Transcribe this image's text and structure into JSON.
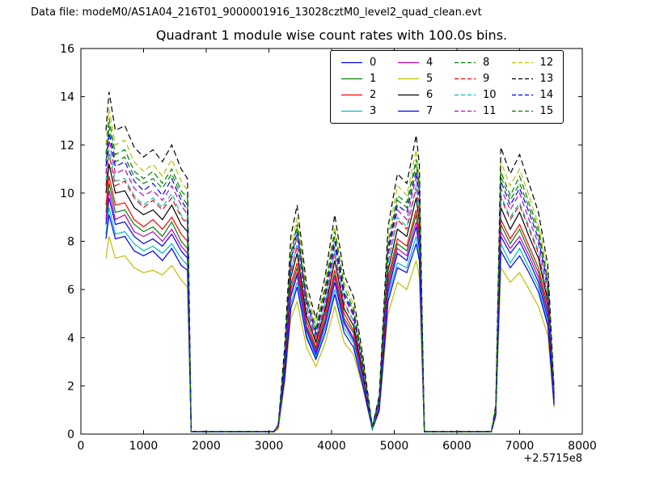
{
  "header": {
    "datafile": "Data file: modeM0/AS1A04_216T01_9000001916_13028cztM0_level2_quad_clean.evt"
  },
  "chart_data": {
    "type": "line",
    "title": "Quadrant 1 module wise count rates with 100.0s bins.",
    "xlabel": "",
    "ylabel": "",
    "x_offset_label": "+2.5715e8",
    "xlim": [
      0,
      8000
    ],
    "ylim": [
      0,
      16
    ],
    "x_ticks": [
      0,
      1000,
      2000,
      3000,
      4000,
      5000,
      6000,
      7000,
      8000
    ],
    "y_ticks": [
      0,
      2,
      4,
      6,
      8,
      10,
      12,
      14,
      16
    ],
    "grid": false,
    "legend_position": "upper center",
    "x": [
      400,
      450,
      550,
      700,
      850,
      1000,
      1150,
      1300,
      1450,
      1600,
      1700,
      1760,
      3080,
      3150,
      3250,
      3350,
      3450,
      3600,
      3750,
      3900,
      4050,
      4200,
      4350,
      4500,
      4650,
      4760,
      4900,
      5050,
      5200,
      5350,
      5400,
      5480,
      6550,
      6620,
      6700,
      6850,
      7000,
      7150,
      7300,
      7450,
      7550
    ],
    "series": [
      {
        "name": "0",
        "color": "#0000ff",
        "dash": false,
        "values": [
          8.7,
          9.8,
          8.7,
          8.8,
          8.2,
          7.9,
          8.1,
          7.8,
          8.3,
          7.6,
          7.3,
          0.1,
          0.1,
          0.3,
          2.5,
          5.7,
          6.6,
          4.3,
          3.3,
          4.6,
          6.3,
          4.6,
          3.9,
          2.2,
          0.2,
          1.1,
          5.9,
          7.5,
          7.2,
          8.6,
          7.7,
          0.1,
          0.1,
          0.8,
          8.2,
          7.5,
          8.0,
          7.2,
          6.3,
          4.8,
          1.3
        ]
      },
      {
        "name": "1",
        "color": "#008000",
        "dash": false,
        "values": [
          9.2,
          10.4,
          9.2,
          9.3,
          8.7,
          8.4,
          8.6,
          8.2,
          8.8,
          8.0,
          7.7,
          0.1,
          0.1,
          0.3,
          2.6,
          6.0,
          6.9,
          4.5,
          3.5,
          4.8,
          6.6,
          4.8,
          4.2,
          2.3,
          0.2,
          1.2,
          6.3,
          7.9,
          7.6,
          9.1,
          8.2,
          0.1,
          0.1,
          0.9,
          8.7,
          7.9,
          8.5,
          7.6,
          6.7,
          5.1,
          1.4
        ]
      },
      {
        "name": "2",
        "color": "#ff0000",
        "dash": false,
        "values": [
          9.5,
          10.7,
          9.5,
          9.6,
          8.9,
          8.6,
          8.9,
          8.5,
          9.0,
          8.3,
          8.0,
          0.1,
          0.1,
          0.3,
          2.7,
          6.2,
          7.1,
          4.7,
          3.6,
          5.0,
          6.8,
          5.0,
          4.3,
          2.4,
          0.2,
          1.2,
          6.5,
          8.1,
          7.8,
          9.3,
          8.4,
          0.1,
          0.1,
          0.9,
          8.9,
          8.1,
          8.7,
          7.8,
          6.9,
          5.3,
          1.4
        ]
      },
      {
        "name": "3",
        "color": "#00bfbf",
        "dash": false,
        "values": [
          8.3,
          9.4,
          8.3,
          8.4,
          7.9,
          7.6,
          7.8,
          7.5,
          7.9,
          7.3,
          7.0,
          0.1,
          0.1,
          0.3,
          2.4,
          5.4,
          6.3,
          4.1,
          3.2,
          4.4,
          6.0,
          4.4,
          3.8,
          2.1,
          0.2,
          1.1,
          5.7,
          7.1,
          6.9,
          8.2,
          7.4,
          0.1,
          0.1,
          0.8,
          7.9,
          7.1,
          7.7,
          6.9,
          6.1,
          4.6,
          1.3
        ]
      },
      {
        "name": "4",
        "color": "#bf00bf",
        "dash": false,
        "values": [
          8.9,
          10.1,
          8.9,
          9.1,
          8.4,
          8.2,
          8.4,
          8.0,
          8.5,
          7.8,
          7.5,
          0.1,
          0.1,
          0.3,
          2.6,
          5.8,
          6.7,
          4.4,
          3.4,
          4.7,
          6.5,
          4.7,
          4.0,
          2.3,
          0.2,
          1.1,
          6.1,
          7.7,
          7.4,
          8.8,
          8.0,
          0.1,
          0.1,
          0.9,
          8.4,
          7.7,
          8.2,
          7.4,
          6.5,
          5.0,
          1.3
        ]
      },
      {
        "name": "5",
        "color": "#bfbf00",
        "dash": false,
        "values": [
          7.3,
          8.2,
          7.3,
          7.4,
          6.9,
          6.7,
          6.8,
          6.6,
          7.0,
          6.4,
          6.1,
          0.1,
          0.1,
          0.2,
          2.1,
          4.8,
          5.5,
          3.6,
          2.8,
          3.8,
          5.3,
          3.8,
          3.3,
          1.9,
          0.2,
          0.9,
          5.0,
          6.3,
          6.0,
          7.2,
          6.5,
          0.1,
          0.1,
          0.7,
          6.9,
          6.3,
          6.7,
          6.0,
          5.3,
          4.1,
          1.1
        ]
      },
      {
        "name": "6",
        "color": "#000000",
        "dash": false,
        "values": [
          10.0,
          11.2,
          10.0,
          10.1,
          9.4,
          9.1,
          9.3,
          8.9,
          9.5,
          8.7,
          8.4,
          0.1,
          0.1,
          0.3,
          2.8,
          6.5,
          7.5,
          4.9,
          3.8,
          5.2,
          7.2,
          5.2,
          4.5,
          2.5,
          0.2,
          1.3,
          6.8,
          8.5,
          8.2,
          9.8,
          8.8,
          0.1,
          0.1,
          0.9,
          9.4,
          8.5,
          9.2,
          8.2,
          7.3,
          5.5,
          1.5
        ]
      },
      {
        "name": "7",
        "color": "#0000ff",
        "dash": false,
        "values": [
          8.1,
          9.1,
          8.1,
          8.2,
          7.6,
          7.4,
          7.6,
          7.2,
          7.7,
          7.0,
          6.8,
          0.1,
          0.1,
          0.3,
          2.3,
          5.2,
          6.1,
          4.0,
          3.1,
          4.2,
          5.8,
          4.2,
          3.6,
          2.0,
          0.2,
          1.0,
          5.5,
          6.9,
          6.7,
          7.9,
          7.2,
          0.1,
          0.1,
          0.8,
          7.6,
          6.9,
          7.4,
          6.7,
          5.9,
          4.5,
          1.2
        ]
      },
      {
        "name": "8",
        "color": "#008000",
        "dash": true,
        "values": [
          11.3,
          12.8,
          11.3,
          11.5,
          10.7,
          10.4,
          10.6,
          10.2,
          10.8,
          9.9,
          9.5,
          0.1,
          0.1,
          0.4,
          3.2,
          7.4,
          8.6,
          5.6,
          4.3,
          5.9,
          8.2,
          5.9,
          5.1,
          2.9,
          0.3,
          1.4,
          7.7,
          9.7,
          9.4,
          11.2,
          10.1,
          0.1,
          0.1,
          1.1,
          10.7,
          9.7,
          10.4,
          9.4,
          8.3,
          6.3,
          1.7
        ]
      },
      {
        "name": "9",
        "color": "#ff0000",
        "dash": true,
        "values": [
          10.3,
          11.6,
          10.3,
          10.5,
          9.8,
          9.4,
          9.7,
          9.3,
          9.8,
          9.0,
          8.7,
          0.1,
          0.1,
          0.3,
          3.0,
          6.7,
          7.8,
          5.1,
          3.9,
          5.4,
          7.5,
          5.4,
          4.7,
          2.6,
          0.2,
          1.3,
          7.1,
          8.9,
          8.5,
          10.2,
          9.2,
          0.1,
          0.1,
          1.0,
          9.8,
          8.9,
          9.5,
          8.5,
          7.5,
          5.7,
          1.6
        ]
      },
      {
        "name": "10",
        "color": "#00bfbf",
        "dash": true,
        "values": [
          10.5,
          11.8,
          10.5,
          10.6,
          9.9,
          9.5,
          9.8,
          9.4,
          10.0,
          9.1,
          8.8,
          0.1,
          0.1,
          0.3,
          3.0,
          6.8,
          7.9,
          5.1,
          4.0,
          5.5,
          7.6,
          5.5,
          4.7,
          2.7,
          0.2,
          1.3,
          7.1,
          9.0,
          8.6,
          10.3,
          9.3,
          0.1,
          0.1,
          1.0,
          9.9,
          9.0,
          9.6,
          8.6,
          7.6,
          5.8,
          1.6
        ]
      },
      {
        "name": "11",
        "color": "#bf00bf",
        "dash": true,
        "values": [
          10.8,
          12.2,
          10.8,
          11.0,
          10.2,
          9.9,
          10.1,
          9.7,
          10.3,
          9.5,
          9.1,
          0.1,
          0.1,
          0.3,
          3.1,
          7.1,
          8.2,
          5.3,
          4.1,
          5.7,
          7.8,
          5.7,
          4.9,
          2.8,
          0.3,
          1.4,
          7.4,
          9.3,
          8.9,
          10.7,
          9.6,
          0.1,
          0.1,
          1.0,
          10.2,
          9.3,
          10.0,
          8.9,
          7.9,
          6.0,
          1.6
        ]
      },
      {
        "name": "12",
        "color": "#bfbf00",
        "dash": true,
        "values": [
          12.0,
          13.5,
          12.0,
          12.2,
          11.3,
          10.9,
          11.2,
          10.7,
          11.4,
          10.5,
          10.1,
          0.1,
          0.1,
          0.4,
          3.4,
          7.8,
          9.0,
          5.9,
          4.6,
          6.3,
          8.6,
          6.3,
          5.4,
          3.0,
          0.3,
          1.5,
          8.2,
          10.3,
          9.9,
          11.8,
          10.6,
          0.1,
          0.1,
          1.1,
          11.3,
          10.3,
          11.0,
          9.9,
          8.7,
          6.7,
          1.8
        ]
      },
      {
        "name": "13",
        "color": "#000000",
        "dash": true,
        "values": [
          12.6,
          14.2,
          12.6,
          12.8,
          11.9,
          11.5,
          11.8,
          11.3,
          12.0,
          11.0,
          10.6,
          0.1,
          0.1,
          0.4,
          3.6,
          8.2,
          9.5,
          6.2,
          4.8,
          6.6,
          9.1,
          6.6,
          5.7,
          3.2,
          0.3,
          1.6,
          8.6,
          10.8,
          10.4,
          12.4,
          11.2,
          0.1,
          0.1,
          1.2,
          11.9,
          10.8,
          11.6,
          10.4,
          9.2,
          7.0,
          1.9
        ]
      },
      {
        "name": "14",
        "color": "#0000ff",
        "dash": true,
        "values": [
          11.1,
          12.5,
          11.1,
          11.3,
          10.5,
          10.1,
          10.4,
          9.9,
          10.6,
          9.7,
          9.3,
          0.1,
          0.1,
          0.4,
          3.2,
          7.2,
          8.4,
          5.5,
          4.2,
          5.8,
          8.0,
          5.8,
          5.0,
          2.8,
          0.3,
          1.4,
          7.6,
          9.5,
          9.2,
          10.9,
          9.9,
          0.1,
          0.1,
          1.1,
          10.5,
          9.5,
          10.2,
          9.2,
          8.1,
          6.2,
          1.7
        ]
      },
      {
        "name": "15",
        "color": "#008000",
        "dash": true,
        "values": [
          11.6,
          13.1,
          11.6,
          11.8,
          10.9,
          10.6,
          10.9,
          10.4,
          11.0,
          10.1,
          9.8,
          0.1,
          0.1,
          0.4,
          3.3,
          7.5,
          8.7,
          5.7,
          4.4,
          6.1,
          8.4,
          6.1,
          5.2,
          2.9,
          0.3,
          1.5,
          7.9,
          9.9,
          9.6,
          11.4,
          10.3,
          0.1,
          0.1,
          1.1,
          10.9,
          9.9,
          10.7,
          9.6,
          8.5,
          6.4,
          1.7
        ]
      }
    ]
  }
}
